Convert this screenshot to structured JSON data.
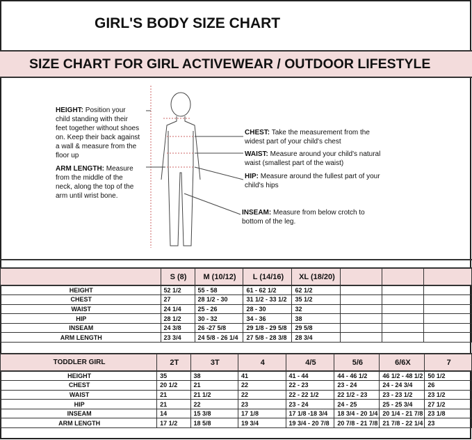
{
  "title": "GIRL'S BODY SIZE CHART",
  "banner": "SIZE CHART FOR GIRL ACTIVEWEAR / OUTDOOR LIFESTYLE",
  "notes": {
    "height": {
      "label": "HEIGHT:",
      "text": "Position your child standing with their feet together without shoes on. Keep their back against a wall & measure from the floor up"
    },
    "arm": {
      "label": "ARM LENGTH:",
      "text": "Measure from the middle of the neck, along the top of the arm until wrist bone."
    },
    "chest": {
      "label": "CHEST:",
      "text": "Take the measurement from the widest part of your child's chest"
    },
    "waist": {
      "label": "WAIST:",
      "text": "Measure around your child's natural waist (smallest part of the waist)"
    },
    "hip": {
      "label": "HIP:",
      "text": "Measure around the fullest part of your child's hips"
    },
    "inseam": {
      "label": "INSEAM:",
      "text": "Measure from below crotch to bottom of the leg."
    }
  },
  "girl_table": {
    "header": [
      "",
      "S (8)",
      "M (10/12)",
      "L (14/16)",
      "XL (18/20)",
      "",
      "",
      ""
    ],
    "rows": [
      [
        "HEIGHT",
        "52 1/2",
        "55 - 58",
        "61 - 62 1/2",
        "62 1/2",
        "",
        "",
        ""
      ],
      [
        "CHEST",
        "27",
        "28 1/2 - 30",
        "31 1/2 - 33 1/2",
        "35 1/2",
        "",
        "",
        ""
      ],
      [
        "WAIST",
        "24 1/4",
        "25 - 26",
        "28 - 30",
        "32",
        "",
        "",
        ""
      ],
      [
        "HIP",
        "28 1/2",
        "30 - 32",
        "34 - 36",
        "38",
        "",
        "",
        ""
      ],
      [
        "INSEAM",
        "24 3/8",
        "26 -27 5/8",
        "29 1/8 - 29 5/8",
        "29 5/8",
        "",
        "",
        ""
      ],
      [
        "ARM LENGTH",
        "23 3/4",
        "24 5/8 - 26 1/4",
        "27 5/8 - 28 3/8",
        "28 3/4",
        "",
        "",
        ""
      ]
    ]
  },
  "toddler_table": {
    "header": [
      "TODDLER GIRL",
      "2T",
      "3T",
      "4",
      "4/5",
      "5/6",
      "6/6X",
      "7"
    ],
    "rows": [
      [
        "HEIGHT",
        "35",
        "38",
        "41",
        "41 - 44",
        "44 - 46 1/2",
        "46 1/2 - 48 1/2",
        "50 1/2"
      ],
      [
        "CHEST",
        "20 1/2",
        "21",
        "22",
        "22 - 23",
        "23 - 24",
        "24 - 24 3/4",
        "26"
      ],
      [
        "WAIST",
        "21",
        "21 1/2",
        "22",
        "22 - 22 1/2",
        "22 1/2 - 23",
        "23 - 23 1/2",
        "23 1/2"
      ],
      [
        "HIP",
        "21",
        "22",
        "23",
        "23 - 24",
        "24 - 25",
        "25 - 25 3/4",
        "27 1/2"
      ],
      [
        "INSEAM",
        "14",
        "15 3/8",
        "17 1/8",
        "17 1/8 -18 3/4",
        "18 3/4 - 20 1/4",
        "20 1/4 - 21 7/8",
        "23 1/8"
      ],
      [
        "ARM LENGTH",
        "17 1/2",
        "18 5/8",
        "19 3/4",
        "19 3/4 - 20 7/8",
        "20 7/8 - 21 7/8",
        "21 7/8 - 22 1/4",
        "23"
      ]
    ]
  }
}
